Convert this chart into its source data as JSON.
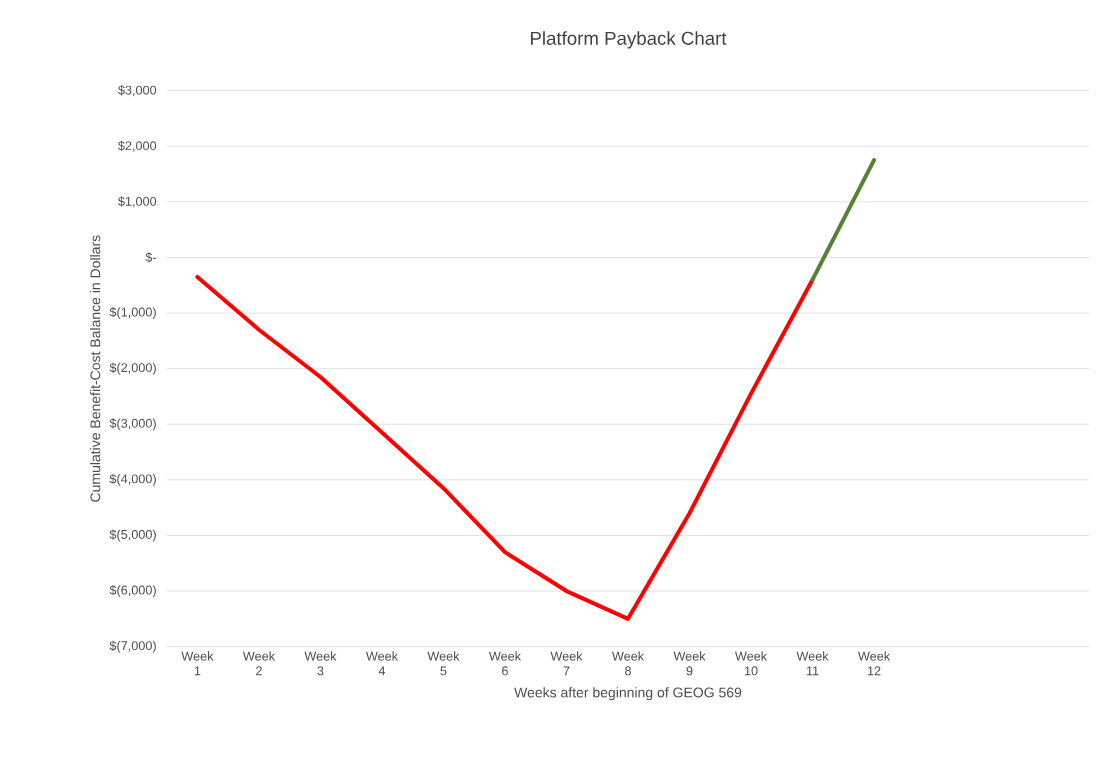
{
  "chart_data": {
    "type": "line",
    "title": "Platform Payback Chart",
    "xlabel": "Weeks after beginning of GEOG 569",
    "ylabel": "Cumulative Benefit-Cost Balance in Dollars",
    "categories": [
      "Week 1",
      "Week 2",
      "Week 3",
      "Week 4",
      "Week 5",
      "Week 6",
      "Week 7",
      "Week 8",
      "Week 9",
      "Week 10",
      "Week 11",
      "Week 12",
      null,
      null,
      null
    ],
    "series": [
      {
        "color": "#ff0000",
        "values": [
          -350,
          -1300,
          -2150,
          -3150,
          -4150,
          -5300,
          -6000,
          -6500,
          -4600,
          -2450,
          -400,
          null,
          null,
          null,
          null
        ]
      },
      {
        "color": "#548235",
        "values": [
          null,
          null,
          null,
          null,
          null,
          null,
          null,
          null,
          null,
          null,
          -400,
          1750,
          null,
          null,
          null
        ]
      }
    ],
    "ylim": [
      -7000,
      3000
    ],
    "yticks": [
      {
        "value": -7000,
        "label": "$(7,000)"
      },
      {
        "value": -6000,
        "label": "$(6,000)"
      },
      {
        "value": -5000,
        "label": "$(5,000)"
      },
      {
        "value": -4000,
        "label": "$(4,000)"
      },
      {
        "value": -3000,
        "label": "$(3,000)"
      },
      {
        "value": -2000,
        "label": "$(2,000)"
      },
      {
        "value": -1000,
        "label": "$(1,000)"
      },
      {
        "value": 0,
        "label": "$-"
      },
      {
        "value": 1000,
        "label": "$1,000"
      },
      {
        "value": 2000,
        "label": "$2,000"
      },
      {
        "value": 3000,
        "label": "$3,000"
      }
    ],
    "grid": "y"
  }
}
